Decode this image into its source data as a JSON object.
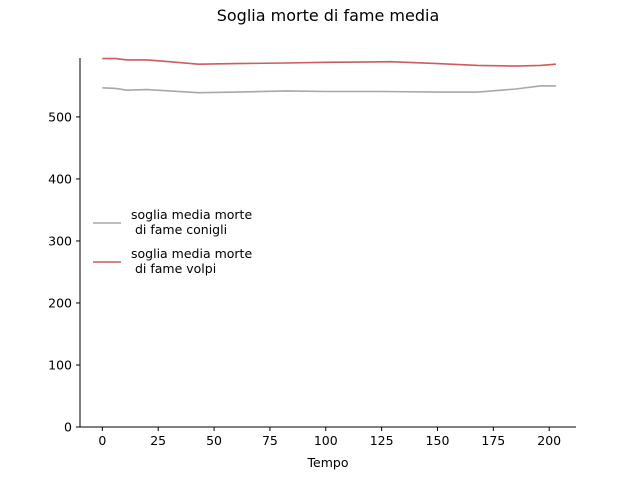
{
  "chart_data": {
    "type": "line",
    "title": "Soglia morte di fame media",
    "xlabel": "Tempo",
    "ylabel": "",
    "xlim": [
      -10,
      212
    ],
    "ylim": [
      0,
      595
    ],
    "xticks": [
      0,
      25,
      50,
      75,
      100,
      125,
      150,
      175,
      200
    ],
    "yticks": [
      0,
      100,
      200,
      300,
      400,
      500
    ],
    "grid": false,
    "legend": "center-left",
    "series": [
      {
        "name": "soglia media morte\n di fame conigli",
        "color": "#a8a8a8",
        "x": [
          0,
          6,
          11,
          20,
          30,
          43,
          60,
          82,
          100,
          125,
          150,
          168,
          185,
          196,
          203
        ],
        "y": [
          547,
          546,
          543,
          544,
          542,
          539,
          540,
          542,
          541,
          541,
          540,
          540,
          545,
          550,
          550
        ]
      },
      {
        "name": "soglia media morte\n di fame volpi",
        "color": "#cd5c5c",
        "x": [
          0,
          6,
          11,
          20,
          30,
          43,
          60,
          82,
          100,
          129,
          150,
          168,
          185,
          196,
          203
        ],
        "y": [
          594,
          594,
          592,
          592,
          589,
          585,
          586,
          587,
          588,
          589,
          586,
          583,
          582,
          583,
          585
        ]
      }
    ]
  }
}
